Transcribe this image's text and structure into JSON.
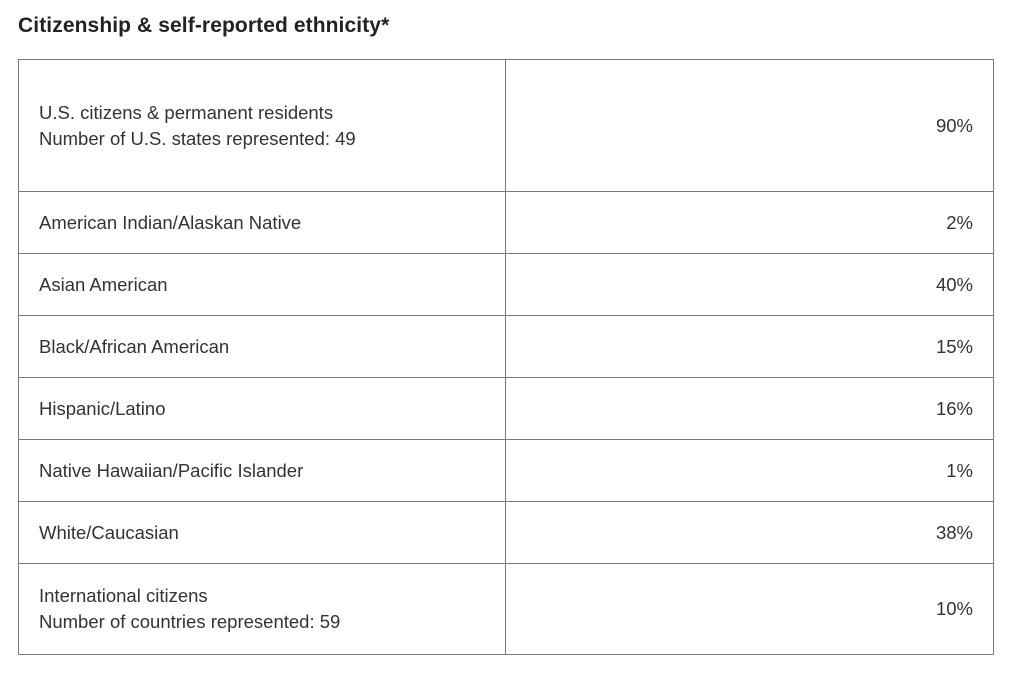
{
  "title": "Citizenship & self-reported ethnicity*",
  "rows": [
    {
      "label": "U.S. citizens & permanent residents",
      "sublabel": "Number of U.S. states represented: 49",
      "value": "90%"
    },
    {
      "label": "American Indian/Alaskan Native",
      "value": "2%"
    },
    {
      "label": "Asian American",
      "value": "40%"
    },
    {
      "label": "Black/African American",
      "value": "15%"
    },
    {
      "label": "Hispanic/Latino",
      "value": "16%"
    },
    {
      "label": "Native Hawaiian/Pacific Islander",
      "value": "1%"
    },
    {
      "label": "White/Caucasian",
      "value": "38%"
    },
    {
      "label": "International citizens",
      "sublabel": "Number of countries represented: 59",
      "value": "10%"
    }
  ]
}
